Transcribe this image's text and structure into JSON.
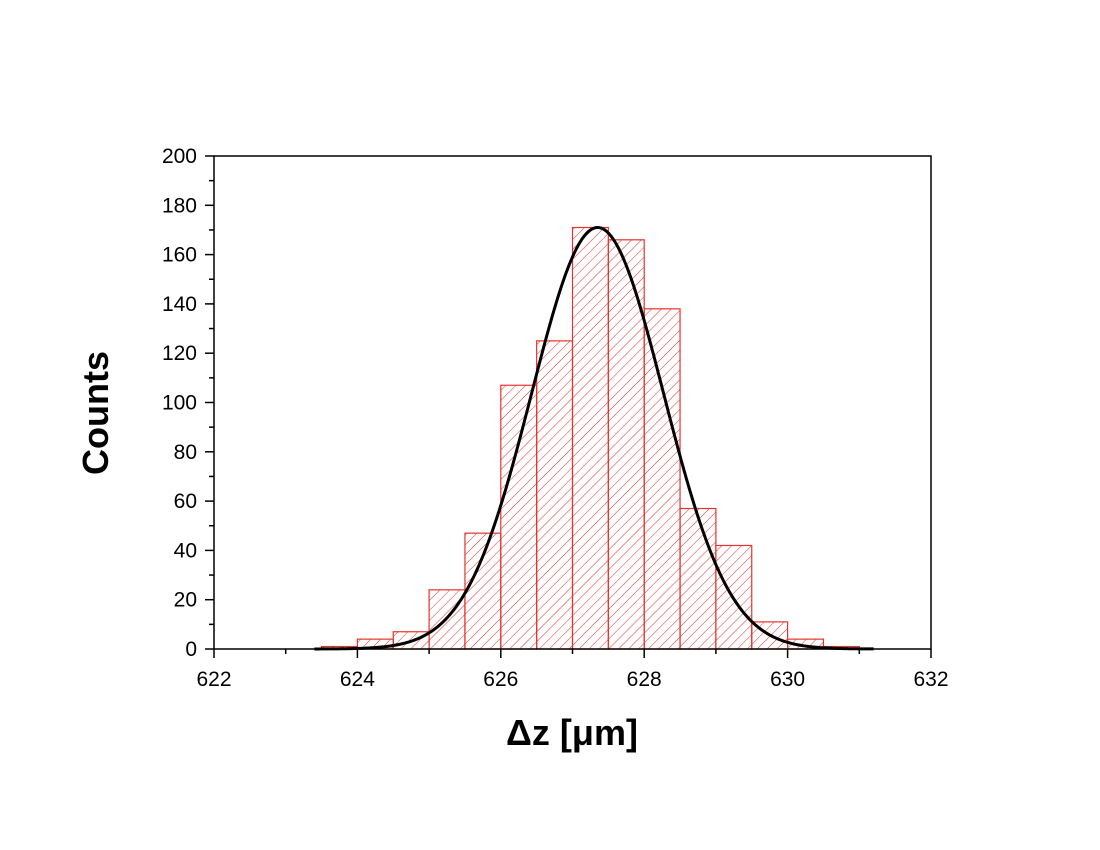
{
  "chart_data": {
    "type": "bar",
    "title": "",
    "xlabel": "Δz [μm]",
    "ylabel": "Counts",
    "xlim": [
      622,
      632
    ],
    "ylim": [
      0,
      200
    ],
    "x_ticks": [
      622,
      624,
      626,
      628,
      630,
      632
    ],
    "y_ticks": [
      0,
      20,
      40,
      60,
      80,
      100,
      120,
      140,
      160,
      180,
      200
    ],
    "bin_width": 0.5,
    "bins": [
      {
        "start": 623.5,
        "end": 624.0,
        "count": 1
      },
      {
        "start": 624.0,
        "end": 624.5,
        "count": 4
      },
      {
        "start": 624.5,
        "end": 625.0,
        "count": 7
      },
      {
        "start": 625.0,
        "end": 625.5,
        "count": 24
      },
      {
        "start": 625.5,
        "end": 626.0,
        "count": 47
      },
      {
        "start": 626.0,
        "end": 626.5,
        "count": 107
      },
      {
        "start": 626.5,
        "end": 627.0,
        "count": 125
      },
      {
        "start": 627.0,
        "end": 627.5,
        "count": 171
      },
      {
        "start": 627.5,
        "end": 628.0,
        "count": 166
      },
      {
        "start": 628.0,
        "end": 628.5,
        "count": 138
      },
      {
        "start": 628.5,
        "end": 629.0,
        "count": 57
      },
      {
        "start": 629.0,
        "end": 629.5,
        "count": 42
      },
      {
        "start": 629.5,
        "end": 630.0,
        "count": 11
      },
      {
        "start": 630.0,
        "end": 630.5,
        "count": 4
      },
      {
        "start": 630.5,
        "end": 631.0,
        "count": 1
      }
    ],
    "fit_curve": {
      "type": "gaussian",
      "center": 627.35,
      "sigma": 0.92,
      "amplitude": 171
    },
    "grid": false,
    "legend": "none",
    "colors": {
      "bar_stroke": "#e8322e",
      "hatch": "#e8322e",
      "curve": "#000000",
      "axis": "#000000"
    }
  }
}
